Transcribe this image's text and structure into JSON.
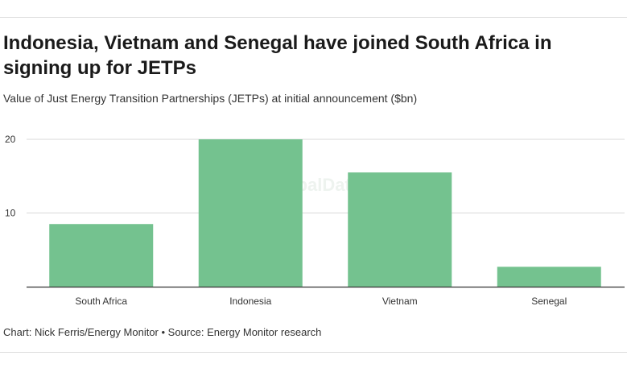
{
  "header": {
    "title": "Indonesia, Vietnam and Senegal have joined South Africa in signing up for JETPs",
    "subtitle": "Value of Just Energy Transition Partnerships (JETPs) at initial announcement ($bn)"
  },
  "footer": {
    "credit": "Chart: Nick Ferris/Energy Monitor • Source: Energy Monitor research"
  },
  "watermark": "GlobalData",
  "chart_data": {
    "type": "bar",
    "title": "Indonesia, Vietnam and Senegal have joined South Africa in signing up for JETPs",
    "subtitle": "Value of Just Energy Transition Partnerships (JETPs) at initial announcement ($bn)",
    "categories": [
      "South Africa",
      "Indonesia",
      "Vietnam",
      "Senegal"
    ],
    "values": [
      8.5,
      20,
      15.5,
      2.7
    ],
    "yticks": [
      10,
      20
    ],
    "ylim": [
      0,
      20
    ],
    "xlabel": "",
    "ylabel": "",
    "grid": true,
    "bar_color": "#74c28f"
  }
}
